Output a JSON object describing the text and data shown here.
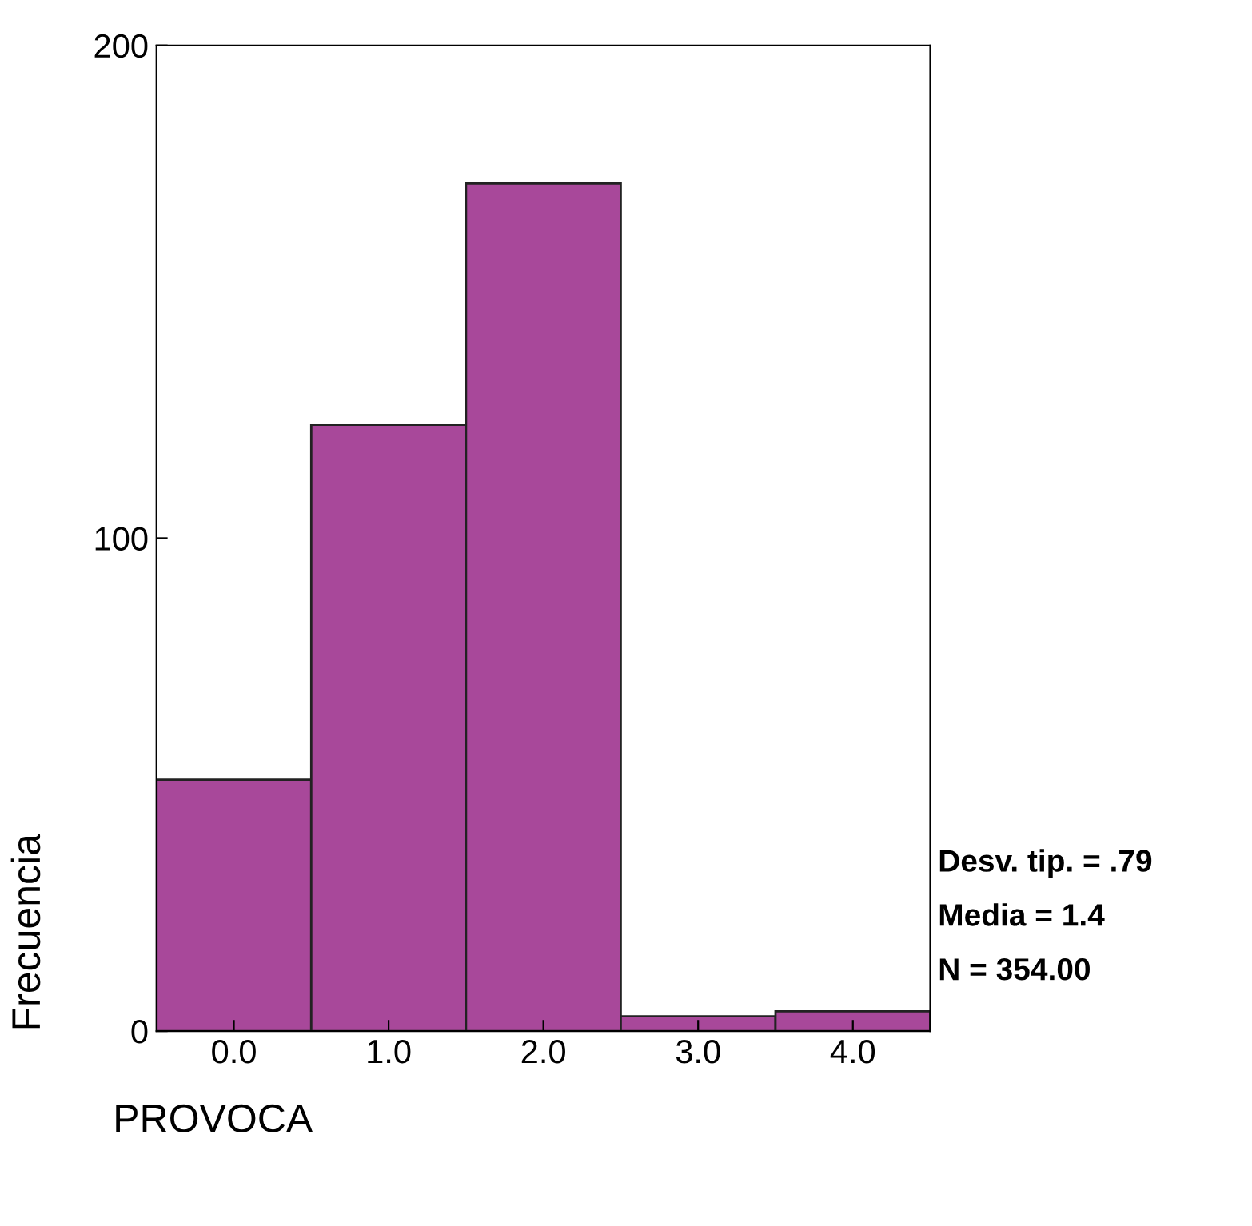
{
  "chart_data": {
    "type": "histogram",
    "xlabel": "PROVOCA",
    "ylabel": "Frecuencia",
    "bins": [
      -0.5,
      0.5,
      1.5,
      2.5,
      3.5,
      4.5
    ],
    "values": [
      51,
      123,
      172,
      3,
      4
    ],
    "color": "#a8489a",
    "xlim": [
      -0.5,
      4.5
    ],
    "xticks": [
      {
        "value": 0,
        "label": "0.0"
      },
      {
        "value": 1,
        "label": "1.0"
      },
      {
        "value": 2,
        "label": "2.0"
      },
      {
        "value": 3,
        "label": "3.0"
      },
      {
        "value": 4,
        "label": "4.0"
      }
    ],
    "ylim": [
      0,
      200
    ],
    "yticks": [
      0,
      100,
      200
    ],
    "grid": false,
    "annotations": [
      "Desv. tip. = .79",
      "Media = 1.4",
      "N = 354.00"
    ]
  }
}
